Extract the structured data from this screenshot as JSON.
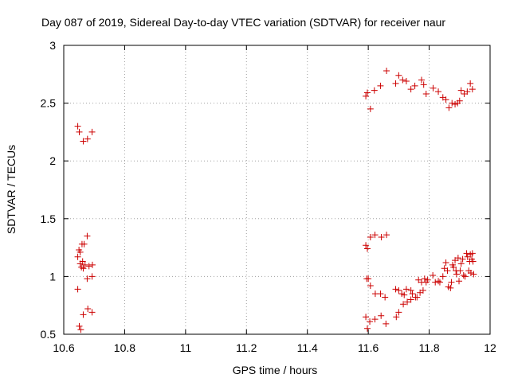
{
  "chart_data": {
    "type": "scatter",
    "title": "Day 087 of 2019, Sidereal Day-to-day VTEC variation (SDTVAR) for receiver naur",
    "xlabel": "GPS time / hours",
    "ylabel": "SDTVAR / TECUs",
    "xlim": [
      10.6,
      12
    ],
    "ylim": [
      0.5,
      3
    ],
    "xticks": [
      "10.6",
      "10.8",
      "11",
      "11.2",
      "11.4",
      "11.6",
      "11.8",
      "12"
    ],
    "yticks": [
      "0.5",
      "1",
      "1.5",
      "2",
      "2.5",
      "3"
    ],
    "grid": true,
    "marker": "+",
    "color": "#cc0000",
    "series": [
      {
        "name": "SDTVAR",
        "points": [
          [
            10.646,
            2.3
          ],
          [
            10.651,
            2.25
          ],
          [
            10.664,
            2.17
          ],
          [
            10.678,
            2.19
          ],
          [
            10.693,
            2.25
          ],
          [
            10.677,
            1.35
          ],
          [
            10.66,
            1.28
          ],
          [
            10.667,
            1.28
          ],
          [
            10.65,
            1.23
          ],
          [
            10.654,
            1.21
          ],
          [
            10.646,
            1.17
          ],
          [
            10.654,
            1.11
          ],
          [
            10.662,
            1.13
          ],
          [
            10.67,
            1.1
          ],
          [
            10.694,
            1.1
          ],
          [
            10.658,
            1.08
          ],
          [
            10.664,
            1.07
          ],
          [
            10.683,
            1.09
          ],
          [
            10.677,
            0.98
          ],
          [
            10.693,
            1.0
          ],
          [
            10.646,
            0.89
          ],
          [
            10.679,
            0.72
          ],
          [
            10.693,
            0.69
          ],
          [
            10.664,
            0.67
          ],
          [
            10.651,
            0.57
          ],
          [
            10.656,
            0.54
          ],
          [
            11.592,
            2.56
          ],
          [
            11.597,
            2.59
          ],
          [
            11.607,
            2.45
          ],
          [
            11.62,
            2.61
          ],
          [
            11.64,
            2.65
          ],
          [
            11.66,
            2.78
          ],
          [
            11.69,
            2.67
          ],
          [
            11.7,
            2.74
          ],
          [
            11.713,
            2.7
          ],
          [
            11.725,
            2.69
          ],
          [
            11.74,
            2.62
          ],
          [
            11.753,
            2.65
          ],
          [
            11.775,
            2.7
          ],
          [
            11.782,
            2.66
          ],
          [
            11.79,
            2.58
          ],
          [
            11.813,
            2.63
          ],
          [
            11.83,
            2.6
          ],
          [
            11.845,
            2.55
          ],
          [
            11.855,
            2.53
          ],
          [
            11.865,
            2.46
          ],
          [
            11.875,
            2.5
          ],
          [
            11.885,
            2.49
          ],
          [
            11.893,
            2.5
          ],
          [
            11.9,
            2.52
          ],
          [
            11.905,
            2.61
          ],
          [
            11.915,
            2.58
          ],
          [
            11.925,
            2.6
          ],
          [
            11.935,
            2.67
          ],
          [
            11.942,
            2.62
          ],
          [
            11.592,
            1.27
          ],
          [
            11.597,
            1.24
          ],
          [
            11.607,
            1.34
          ],
          [
            11.622,
            1.36
          ],
          [
            11.643,
            1.34
          ],
          [
            11.66,
            1.36
          ],
          [
            11.595,
            0.98
          ],
          [
            11.6,
            0.98
          ],
          [
            11.607,
            0.92
          ],
          [
            11.623,
            0.85
          ],
          [
            11.64,
            0.85
          ],
          [
            11.655,
            0.82
          ],
          [
            11.69,
            0.89
          ],
          [
            11.7,
            0.88
          ],
          [
            11.71,
            0.85
          ],
          [
            11.718,
            0.84
          ],
          [
            11.725,
            0.89
          ],
          [
            11.74,
            0.88
          ],
          [
            11.745,
            0.85
          ],
          [
            11.76,
            0.82
          ],
          [
            11.765,
            0.97
          ],
          [
            11.775,
            0.95
          ],
          [
            11.785,
            0.98
          ],
          [
            11.79,
            0.95
          ],
          [
            11.795,
            0.97
          ],
          [
            11.812,
            1.01
          ],
          [
            11.82,
            0.95
          ],
          [
            11.83,
            0.96
          ],
          [
            11.835,
            0.95
          ],
          [
            11.845,
            1.0
          ],
          [
            11.85,
            1.07
          ],
          [
            11.855,
            1.12
          ],
          [
            11.86,
            1.05
          ],
          [
            11.863,
            0.91
          ],
          [
            11.87,
            0.9
          ],
          [
            11.873,
            0.95
          ],
          [
            11.877,
            1.1
          ],
          [
            11.88,
            1.08
          ],
          [
            11.885,
            1.14
          ],
          [
            11.888,
            1.05
          ],
          [
            11.89,
            1.02
          ],
          [
            11.895,
            1.16
          ],
          [
            11.898,
            0.96
          ],
          [
            11.902,
            1.05
          ],
          [
            11.905,
            1.11
          ],
          [
            11.91,
            1.15
          ],
          [
            11.913,
            1.01
          ],
          [
            11.918,
            1.0
          ],
          [
            11.923,
            1.2
          ],
          [
            11.926,
            1.17
          ],
          [
            11.93,
            1.05
          ],
          [
            11.933,
            1.13
          ],
          [
            11.935,
            1.19
          ],
          [
            11.937,
            1.03
          ],
          [
            11.94,
            1.15
          ],
          [
            11.942,
            1.2
          ],
          [
            11.944,
            1.13
          ],
          [
            11.946,
            1.02
          ],
          [
            11.592,
            0.65
          ],
          [
            11.597,
            0.55
          ],
          [
            11.605,
            0.61
          ],
          [
            11.622,
            0.63
          ],
          [
            11.642,
            0.66
          ],
          [
            11.658,
            0.59
          ],
          [
            11.692,
            0.65
          ],
          [
            11.7,
            0.69
          ],
          [
            11.715,
            0.76
          ],
          [
            11.728,
            0.78
          ],
          [
            11.74,
            0.8
          ],
          [
            11.755,
            0.82
          ],
          [
            11.77,
            0.86
          ],
          [
            11.78,
            0.88
          ]
        ]
      }
    ]
  }
}
